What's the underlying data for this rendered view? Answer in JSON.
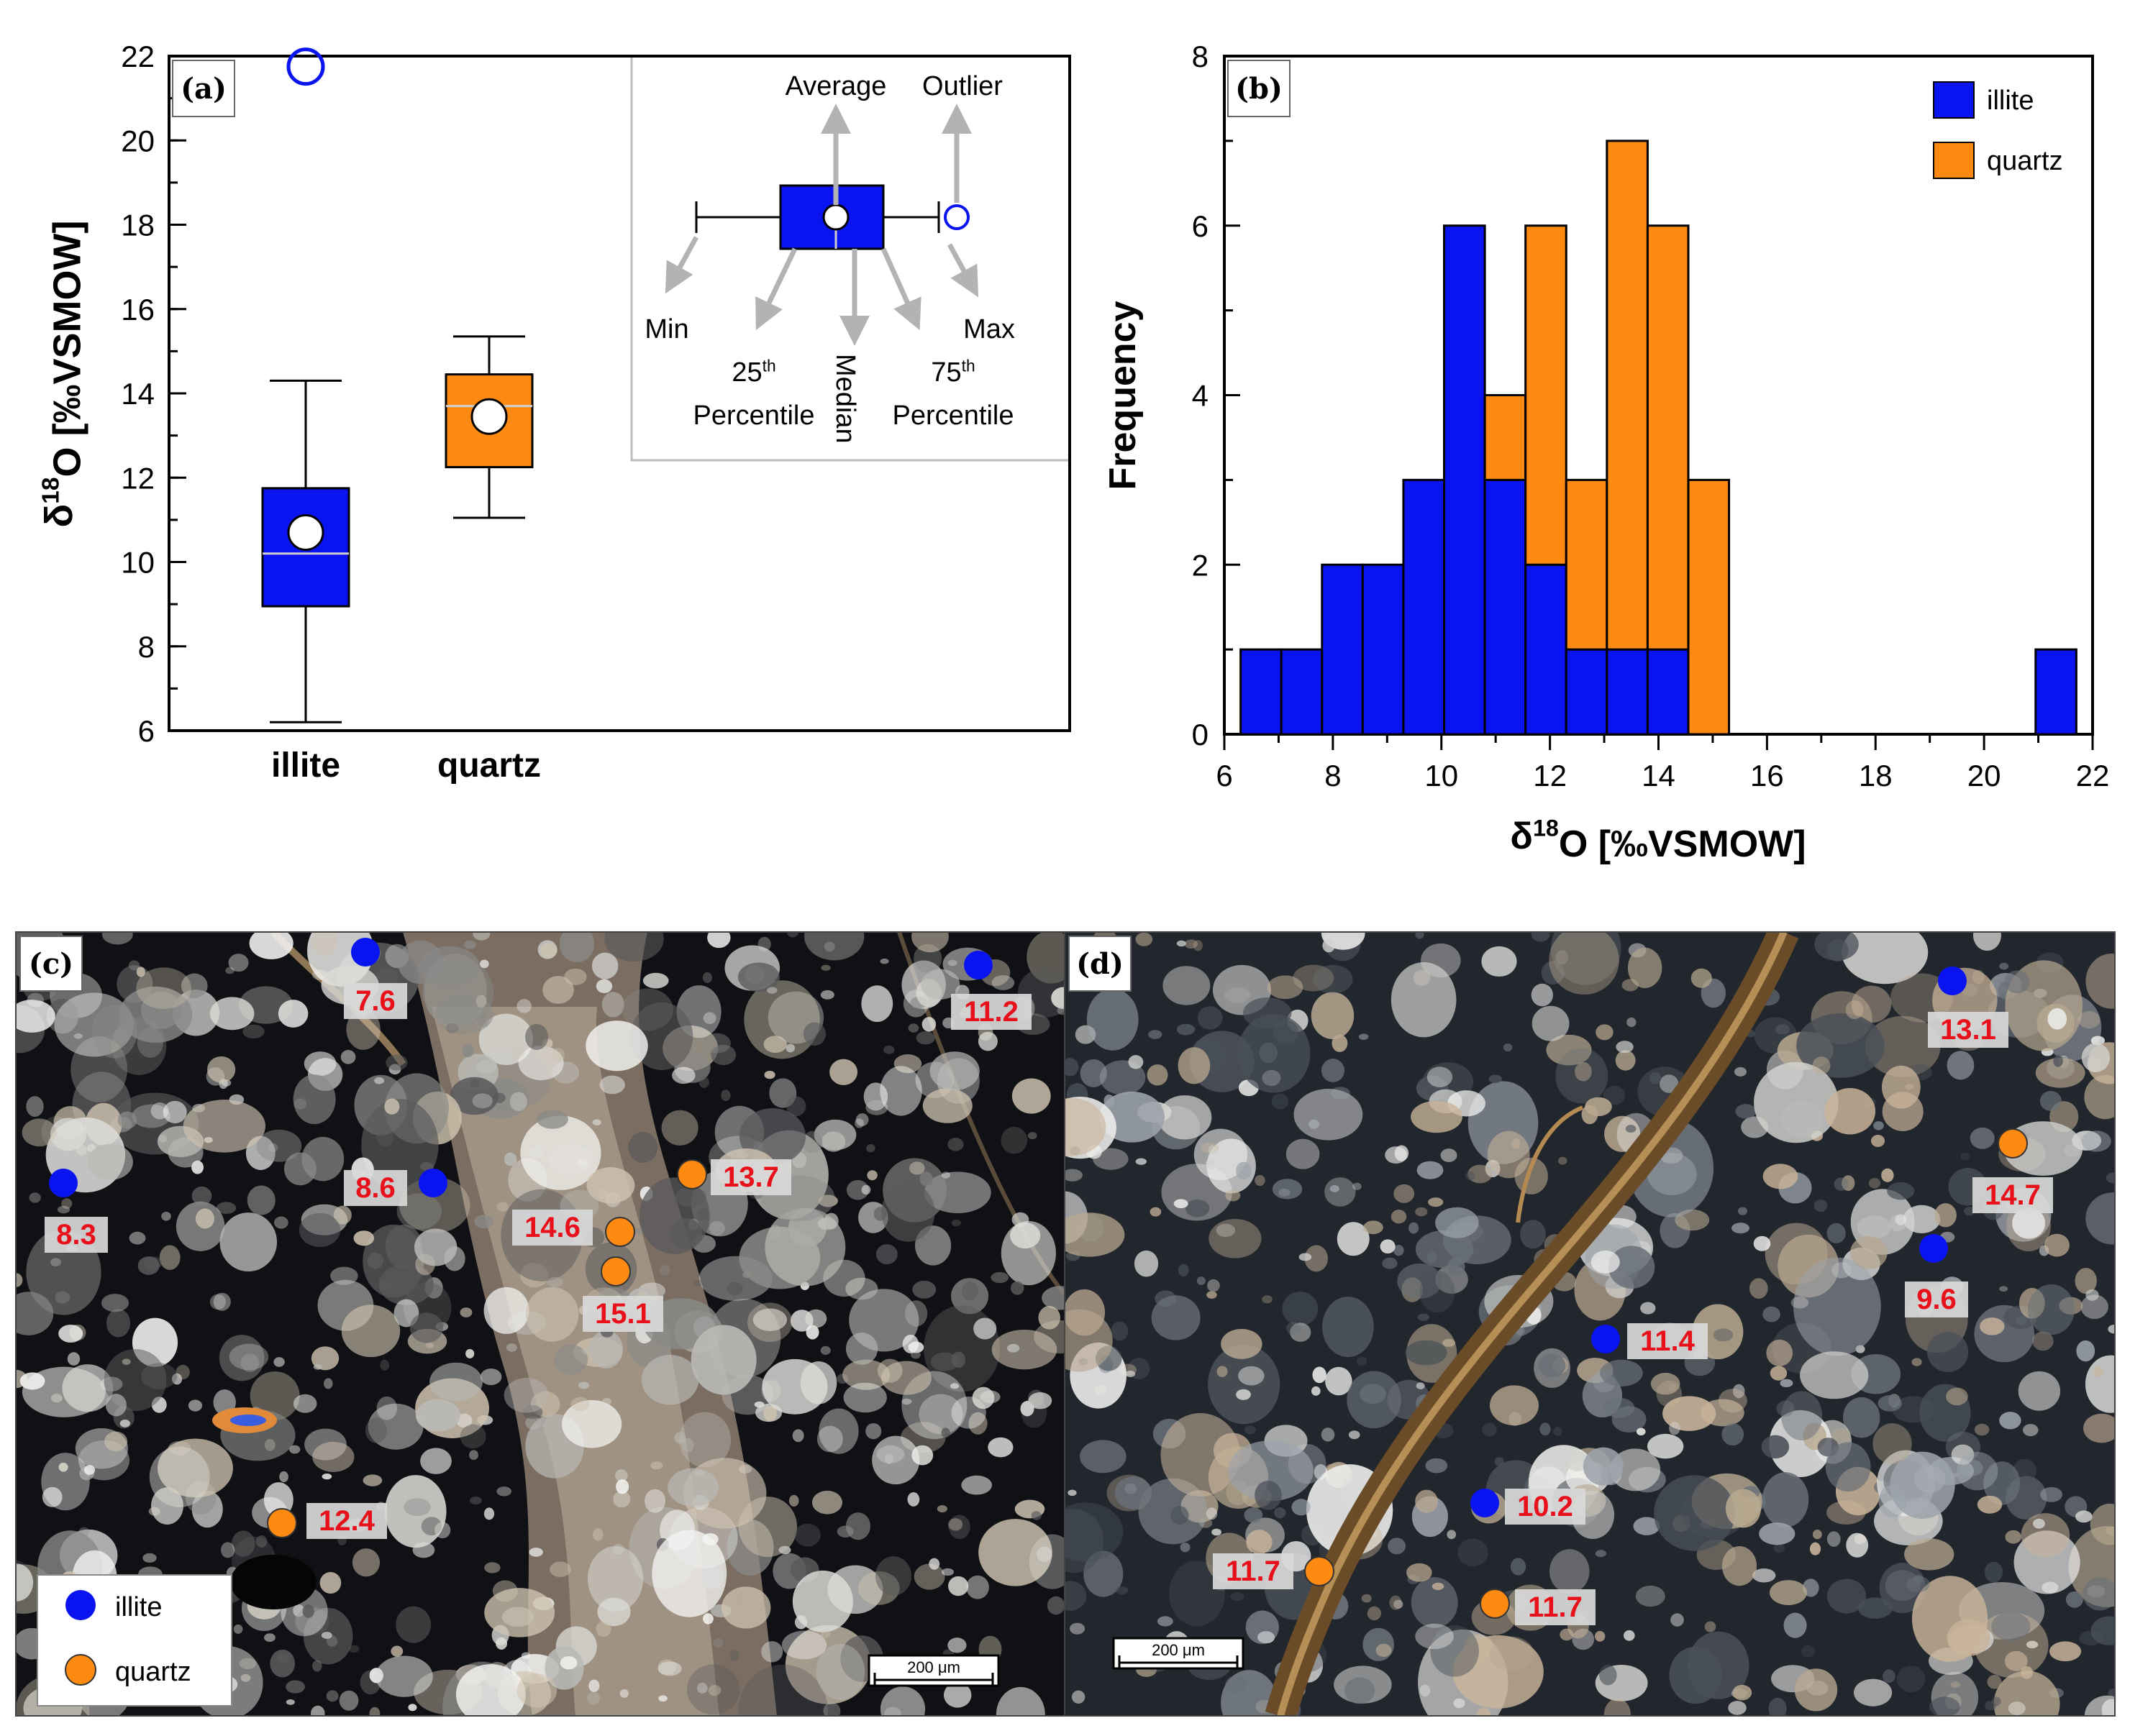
{
  "panels": {
    "a": "(a)",
    "b": "(b)",
    "c": "(c)",
    "d": "(d)"
  },
  "colors": {
    "illite": "#0a14f0",
    "quartz": "#ff8a12",
    "text_red": "#e8101a"
  },
  "chart_data": [
    {
      "type": "box",
      "panel": "(a)",
      "ylabel": "δ18O [‰VSMOW]",
      "ylim": [
        6,
        22
      ],
      "yticks": [
        6,
        8,
        10,
        12,
        14,
        16,
        18,
        20,
        22
      ],
      "categories": [
        "illite",
        "quartz"
      ],
      "boxes": [
        {
          "name": "illite",
          "min": 6.2,
          "q1": 8.95,
          "median": 10.2,
          "q3": 11.75,
          "max": 14.3,
          "average": 10.7,
          "outliers": [
            21.75
          ]
        },
        {
          "name": "quartz",
          "min": 11.05,
          "q1": 12.25,
          "median": 13.7,
          "q3": 14.45,
          "max": 15.35,
          "average": 13.45,
          "outliers": []
        }
      ],
      "legend": {
        "average": "Average",
        "outlier": "Outlier",
        "min": "Min",
        "p25_prefix": "25",
        "p25_sup": "th",
        "percentile": "Percentile",
        "median": "Median",
        "p75_prefix": "75",
        "p75_sup": "th",
        "max": "Max"
      }
    },
    {
      "type": "bar",
      "stacked": true,
      "panel": "(b)",
      "xlabel": "δ18O [‰VSMOW]",
      "ylabel": "Frequency",
      "xlim": [
        6,
        22
      ],
      "ylim": [
        0,
        8
      ],
      "xticks": [
        6,
        8,
        10,
        12,
        14,
        16,
        18,
        20,
        22
      ],
      "yticks": [
        0,
        2,
        4,
        6,
        8
      ],
      "bin_width": 0.75,
      "bin_starts": [
        6.3,
        7.05,
        7.8,
        8.55,
        9.3,
        10.05,
        10.8,
        11.55,
        12.3,
        13.05,
        13.8,
        14.55,
        20.95
      ],
      "series": [
        {
          "name": "illite",
          "values": [
            1,
            1,
            2,
            2,
            3,
            6,
            3,
            2,
            1,
            1,
            1,
            0,
            1
          ]
        },
        {
          "name": "quartz",
          "values": [
            0,
            0,
            0,
            0,
            0,
            0,
            1,
            4,
            2,
            6,
            5,
            3,
            0
          ]
        }
      ],
      "legend": [
        "illite",
        "quartz"
      ]
    }
  ],
  "micrographs": {
    "c": {
      "scale_bar": "200 μm",
      "legend": [
        "illite",
        "quartz"
      ],
      "points": [
        {
          "type": "illite",
          "label": "7.6"
        },
        {
          "type": "illite",
          "label": "11.2"
        },
        {
          "type": "illite",
          "label": "8.3"
        },
        {
          "type": "illite",
          "label": "8.6"
        },
        {
          "type": "quartz",
          "label": "13.7"
        },
        {
          "type": "quartz",
          "label": "14.6"
        },
        {
          "type": "quartz",
          "label": "15.1"
        },
        {
          "type": "quartz",
          "label": "12.4"
        }
      ]
    },
    "d": {
      "scale_bar": "200 μm",
      "points": [
        {
          "type": "illite",
          "label": "13.1"
        },
        {
          "type": "quartz",
          "label": "14.7"
        },
        {
          "type": "illite",
          "label": "9.6"
        },
        {
          "type": "illite",
          "label": "11.4"
        },
        {
          "type": "illite",
          "label": "10.2"
        },
        {
          "type": "quartz",
          "label": "11.7"
        },
        {
          "type": "quartz",
          "label": "11.7"
        }
      ]
    }
  }
}
